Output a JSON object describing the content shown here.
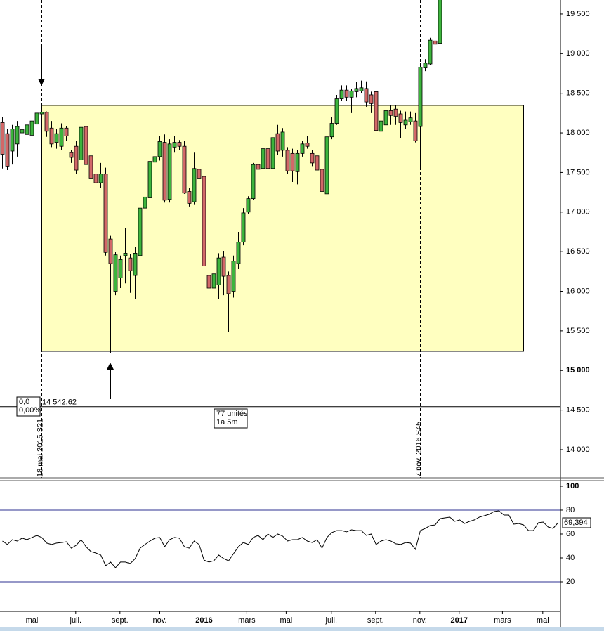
{
  "chart_data": [
    {
      "type": "candlestick",
      "open": [
        18130,
        17990,
        17770,
        17860,
        18000,
        17980,
        17970,
        18110,
        18240,
        18260,
        18060,
        17880,
        17830,
        18060,
        17750,
        17830,
        17660,
        18080,
        17710,
        17480,
        17370,
        17480,
        16660,
        16000,
        16170,
        16450,
        16420,
        16200,
        16450,
        17050,
        17180,
        17630,
        17700,
        17880,
        17160,
        17820,
        17880,
        17830,
        17260,
        17130,
        17540,
        17450,
        16200,
        16040,
        16080,
        16430,
        16200,
        16000,
        16350,
        16620,
        17000,
        17170,
        17600,
        17550,
        17800,
        17550,
        17990,
        17780,
        17780,
        17740,
        17510,
        17740,
        17870,
        17740,
        17710,
        17540,
        17230,
        17950,
        18120,
        18430,
        18540,
        18450,
        18520,
        18530,
        18560,
        18480,
        18520,
        18020,
        18100,
        18280,
        18300,
        18240,
        18100,
        18140,
        18150,
        18080,
        18820,
        18870,
        19160,
        19130
      ],
      "high": [
        18200,
        18050,
        18100,
        18150,
        18130,
        18180,
        18200,
        18290,
        18300,
        18270,
        18150,
        18050,
        18120,
        18080,
        17780,
        17900,
        18180,
        18150,
        17750,
        17520,
        17620,
        17560,
        16700,
        16500,
        16450,
        16800,
        16470,
        16560,
        17130,
        17250,
        17680,
        17790,
        17960,
        17980,
        17920,
        17960,
        17910,
        17900,
        17300,
        17750,
        17580,
        17480,
        16300,
        16280,
        16480,
        16510,
        16250,
        16450,
        16750,
        17050,
        17200,
        17620,
        17700,
        17880,
        17830,
        18000,
        18100,
        18060,
        17820,
        17800,
        17780,
        17900,
        17960,
        17780,
        17750,
        17600,
        18000,
        18200,
        18480,
        18600,
        18600,
        18550,
        18640,
        18660,
        18650,
        18520,
        18540,
        18200,
        18300,
        18350,
        18350,
        18280,
        18270,
        18270,
        18250,
        18880,
        18930,
        19200,
        19190,
        19900
      ],
      "low": [
        17550,
        17530,
        17600,
        17700,
        17780,
        17850,
        17700,
        18050,
        18150,
        17950,
        17820,
        17800,
        17780,
        17900,
        17620,
        17480,
        17600,
        17550,
        17350,
        17250,
        17300,
        16450,
        15220,
        15950,
        16040,
        16100,
        15980,
        15900,
        16400,
        16960,
        17130,
        17600,
        17650,
        17120,
        17120,
        17750,
        17780,
        17230,
        17070,
        17090,
        17380,
        16280,
        15870,
        15450,
        15900,
        15950,
        15490,
        15920,
        16280,
        16580,
        16980,
        17150,
        17480,
        17500,
        17480,
        17500,
        17720,
        17700,
        17480,
        17380,
        17350,
        17700,
        17800,
        17580,
        17480,
        17180,
        17050,
        17920,
        18100,
        18400,
        18400,
        18250,
        18450,
        18500,
        18330,
        18250,
        18000,
        17900,
        18060,
        18100,
        18100,
        17930,
        18050,
        18100,
        17880,
        17550,
        18780,
        18860,
        19070,
        19100
      ],
      "close": [
        17730,
        17580,
        18050,
        18080,
        18040,
        18100,
        18150,
        18250,
        18260,
        18020,
        17860,
        17990,
        18060,
        17960,
        17690,
        17530,
        18070,
        17600,
        17420,
        17370,
        17480,
        16490,
        16350,
        16460,
        16400,
        16480,
        16260,
        16480,
        17050,
        17190,
        17640,
        17700,
        17890,
        17150,
        17860,
        17880,
        17830,
        17240,
        17110,
        17550,
        17420,
        16320,
        16040,
        16220,
        16420,
        16190,
        15970,
        16380,
        16620,
        16990,
        17170,
        17600,
        17540,
        17800,
        17550,
        17940,
        17770,
        18010,
        17520,
        17520,
        17740,
        17860,
        17830,
        17620,
        17530,
        17260,
        17950,
        18120,
        18430,
        18540,
        18450,
        18530,
        18560,
        18570,
        18390,
        18370,
        18030,
        18150,
        18280,
        18220,
        18210,
        18130,
        18160,
        18190,
        17900,
        18830,
        18880,
        19170,
        19120,
        19800
      ],
      "up_color": "#3cb43c",
      "down_color": "#d26868",
      "xlim": [
        -0.5,
        113.5
      ],
      "ylim": [
        13645,
        19677
      ],
      "yticks": [
        {
          "value": 14000,
          "label": "14 000"
        },
        {
          "value": 14500,
          "label": "14 500"
        },
        {
          "value": 15000,
          "label": "15 000"
        },
        {
          "value": 15500,
          "label": "15 500"
        },
        {
          "value": 16000,
          "label": "16 000"
        },
        {
          "value": 16500,
          "label": "16 500"
        },
        {
          "value": 17000,
          "label": "17 000"
        },
        {
          "value": 17500,
          "label": "17 500"
        },
        {
          "value": 18000,
          "label": "18 000"
        },
        {
          "value": 18500,
          "label": "18 500"
        },
        {
          "value": 19000,
          "label": "19 000"
        },
        {
          "value": 19500,
          "label": "19 500"
        }
      ],
      "bold_yticks": [
        15000
      ],
      "range_box": {
        "high": 18347,
        "low": 15242,
        "start": 8,
        "end": 106,
        "color": "#ffffc0"
      },
      "level_line": {
        "value": 14542.62,
        "label": "14 542,62"
      },
      "markers": [
        {
          "index": 8,
          "label": "18 mai 2015 S21"
        },
        {
          "index": 85,
          "label": "7 nov. 2016 S45"
        }
      ],
      "counter_box": [
        "0,0",
        "0,00%"
      ],
      "span_box": [
        "77 unités",
        "1a 5m"
      ]
    },
    {
      "type": "line",
      "values": [
        54.1,
        51.2,
        55.3,
        54.1,
        56.5,
        55.3,
        57.1,
        58.8,
        57.1,
        52.4,
        51.2,
        52.4,
        52.9,
        53.5,
        48.2,
        50.6,
        55.3,
        49.4,
        45.3,
        44.1,
        42.4,
        33.5,
        36.5,
        31.8,
        36.5,
        36.5,
        35.3,
        39.4,
        48.2,
        51.2,
        54.1,
        56.5,
        57.1,
        49.4,
        55.3,
        57.1,
        56.5,
        49.4,
        48.2,
        54.1,
        51.2,
        38.2,
        36.5,
        37.6,
        42.4,
        39.4,
        37.6,
        43.5,
        49.4,
        52.9,
        51.2,
        57.1,
        58.8,
        55.3,
        60.0,
        57.1,
        60.0,
        58.2,
        54.1,
        55.3,
        55.3,
        57.1,
        54.1,
        52.9,
        55.3,
        48.2,
        57.1,
        61.2,
        62.9,
        62.9,
        61.8,
        63.5,
        62.9,
        62.9,
        58.8,
        60.0,
        51.2,
        54.1,
        55.3,
        54.1,
        51.8,
        51.2,
        52.9,
        52.4,
        47.1,
        62.9,
        64.7,
        67.1,
        67.6,
        72.9,
        73.5,
        74.1,
        70.6,
        71.8,
        68.8,
        70.6,
        71.8,
        74.1,
        75.3,
        76.5,
        78.8,
        79.4,
        75.9,
        75.9,
        68.2,
        68.8,
        67.6,
        62.9,
        62.9,
        69.4,
        70.0,
        65.9,
        64.7,
        69.394
      ],
      "last_label": "69,394",
      "color": "#000000",
      "xlim": [
        -0.5,
        113.5
      ],
      "ylim": [
        -4.7,
        104.1
      ],
      "yticks": [
        20,
        40,
        60,
        80,
        100
      ],
      "bold_yticks": [
        100
      ],
      "levels": [
        80,
        20
      ],
      "level_color": "#2e3192",
      "xticks": [
        {
          "value": 6,
          "label": "mai"
        },
        {
          "value": 14.9,
          "label": "juil."
        },
        {
          "value": 23.9,
          "label": "sept."
        },
        {
          "value": 32,
          "label": "nov."
        },
        {
          "value": 41,
          "label": "2016",
          "bold": true
        },
        {
          "value": 49.7,
          "label": "mars"
        },
        {
          "value": 57.7,
          "label": "mai"
        },
        {
          "value": 66.9,
          "label": "juil."
        },
        {
          "value": 75.9,
          "label": "sept."
        },
        {
          "value": 84.9,
          "label": "nov."
        },
        {
          "value": 92.9,
          "label": "2017",
          "bold": true
        },
        {
          "value": 101.7,
          "label": "mars"
        },
        {
          "value": 109.9,
          "label": "mai"
        }
      ]
    }
  ]
}
